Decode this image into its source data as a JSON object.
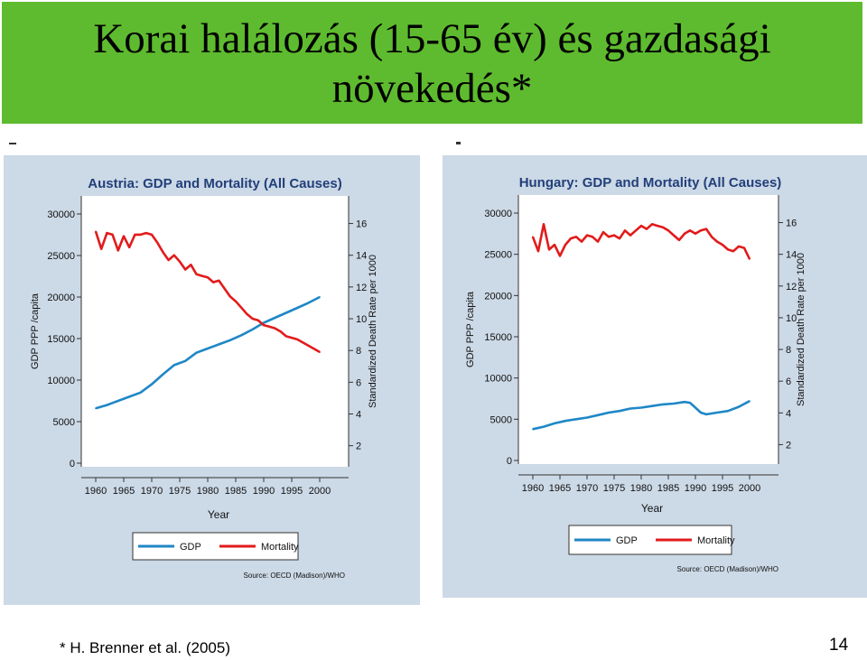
{
  "slide": {
    "title_line1": "Korai halálozás (15-65 év)  és gazdasági",
    "title_line2": "növekedés*",
    "footnote": "* H. Brenner et al. (2005)",
    "page_number": "14",
    "title_bg": "#5ebb2f"
  },
  "colors": {
    "gdp": "#1f87c6",
    "mortality": "#e21b1b",
    "plot_bg": "#ffffff",
    "panel_bg": "#ccd9e6",
    "title_text": "#223f7a"
  },
  "chart_data": [
    {
      "type": "line",
      "title": "Austria: GDP and Mortality (All Causes)",
      "xlabel": "Year",
      "ylabel": "GDP PPP /capita",
      "y2label": "Standardized Death Rate per 1000",
      "x_ticks": [
        "1960",
        "1965",
        "1970",
        "1975",
        "1980",
        "1985",
        "1990",
        "1995",
        "2000"
      ],
      "y_ticks": [
        "0",
        "5000",
        "10000",
        "15000",
        "20000",
        "25000",
        "30000"
      ],
      "y2_ticks": [
        "2",
        "4",
        "6",
        "8",
        "10",
        "12",
        "14",
        "16"
      ],
      "xlim": [
        1960,
        2000
      ],
      "ylim": [
        0,
        30000
      ],
      "y2lim": [
        0.9,
        16.6
      ],
      "legend": [
        "GDP",
        "Mortality"
      ],
      "source": "Source: OECD (Madison)/WHO",
      "series": [
        {
          "name": "GDP",
          "axis": "left",
          "x": [
            1960,
            1962,
            1964,
            1966,
            1968,
            1970,
            1972,
            1974,
            1976,
            1978,
            1980,
            1982,
            1984,
            1986,
            1988,
            1990,
            1992,
            1994,
            1996,
            1998,
            2000
          ],
          "values": [
            6600,
            7000,
            7500,
            8000,
            8500,
            9500,
            10700,
            11800,
            12300,
            13300,
            13800,
            14300,
            14800,
            15400,
            16100,
            16900,
            17500,
            18100,
            18700,
            19300,
            20000
          ]
        },
        {
          "name": "Mortality",
          "axis": "right",
          "x": [
            1960,
            1961,
            1962,
            1963,
            1964,
            1965,
            1966,
            1967,
            1968,
            1969,
            1970,
            1971,
            1972,
            1973,
            1974,
            1975,
            1976,
            1977,
            1978,
            1979,
            1980,
            1981,
            1982,
            1983,
            1984,
            1985,
            1986,
            1987,
            1988,
            1989,
            1990,
            1991,
            1992,
            1993,
            1994,
            1995,
            1996,
            1997,
            1998,
            1999,
            2000
          ],
          "values": [
            15.5,
            14.4,
            15.4,
            15.3,
            14.3,
            15.2,
            14.5,
            15.3,
            15.3,
            15.4,
            15.3,
            14.8,
            14.2,
            13.7,
            14.0,
            13.6,
            13.1,
            13.4,
            12.8,
            12.7,
            12.6,
            12.3,
            12.4,
            11.9,
            11.4,
            11.1,
            10.7,
            10.3,
            10.0,
            9.9,
            9.6,
            9.5,
            9.4,
            9.2,
            8.9,
            8.8,
            8.7,
            8.5,
            8.3,
            8.1,
            7.9
          ]
        }
      ]
    },
    {
      "type": "line",
      "title": "Hungary: GDP and Mortality (All Causes)",
      "xlabel": "Year",
      "ylabel": "GDP PPP /capita",
      "y2label": "Standardized Death Rate per 1000",
      "x_ticks": [
        "1960",
        "1965",
        "1970",
        "1975",
        "1980",
        "1985",
        "1990",
        "1995",
        "2000"
      ],
      "y_ticks": [
        "0",
        "5000",
        "10000",
        "15000",
        "20000",
        "25000",
        "30000"
      ],
      "y2_ticks": [
        "2",
        "4",
        "6",
        "8",
        "10",
        "12",
        "14",
        "16"
      ],
      "xlim": [
        1960,
        2000
      ],
      "ylim": [
        0,
        30000
      ],
      "y2lim": [
        1.0,
        16.6
      ],
      "legend": [
        "GDP",
        "Mortality"
      ],
      "source": "Source: OECD (Madison)/WHO",
      "series": [
        {
          "name": "GDP",
          "axis": "left",
          "x": [
            1960,
            1962,
            1964,
            1966,
            1968,
            1970,
            1972,
            1974,
            1976,
            1978,
            1980,
            1982,
            1984,
            1986,
            1988,
            1989,
            1990,
            1991,
            1992,
            1994,
            1996,
            1998,
            2000
          ],
          "values": [
            3800,
            4100,
            4500,
            4800,
            5000,
            5200,
            5500,
            5800,
            6000,
            6300,
            6400,
            6600,
            6800,
            6900,
            7100,
            7000,
            6400,
            5800,
            5600,
            5800,
            6000,
            6500,
            7200
          ]
        },
        {
          "name": "Mortality",
          "axis": "right",
          "x": [
            1960,
            1961,
            1962,
            1963,
            1964,
            1965,
            1966,
            1967,
            1968,
            1969,
            1970,
            1971,
            1972,
            1973,
            1974,
            1975,
            1976,
            1977,
            1978,
            1979,
            1980,
            1981,
            1982,
            1983,
            1984,
            1985,
            1986,
            1987,
            1988,
            1989,
            1990,
            1991,
            1992,
            1993,
            1994,
            1995,
            1996,
            1997,
            1998,
            1999,
            2000
          ],
          "values": [
            15.1,
            14.2,
            15.9,
            14.3,
            14.6,
            13.9,
            14.6,
            15.0,
            15.1,
            14.8,
            15.2,
            15.1,
            14.8,
            15.4,
            15.1,
            15.2,
            15.0,
            15.5,
            15.2,
            15.5,
            15.8,
            15.6,
            15.9,
            15.8,
            15.7,
            15.5,
            15.2,
            14.9,
            15.3,
            15.5,
            15.3,
            15.5,
            15.6,
            15.1,
            14.8,
            14.6,
            14.3,
            14.2,
            14.5,
            14.4,
            13.7
          ]
        }
      ]
    }
  ]
}
